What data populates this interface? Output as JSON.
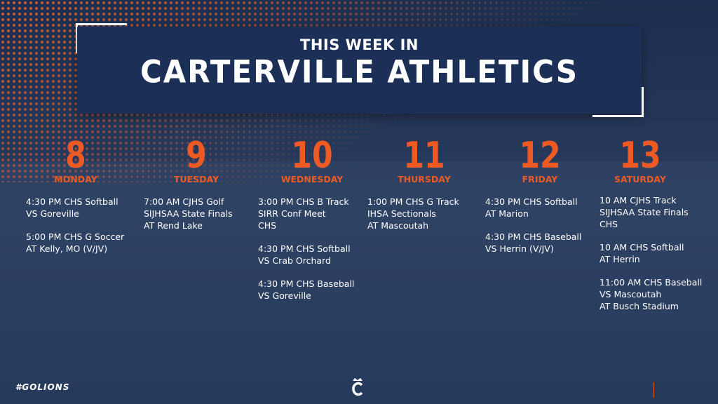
{
  "header": {
    "kicker": "THIS WEEK IN",
    "title": "CARTERVILLE ATHLETICS"
  },
  "days": [
    {
      "number": "8",
      "name": "MONDAY",
      "events": [
        [
          "4:30 PM CHS Softball",
          "VS Goreville"
        ],
        [
          "5:00 PM CHS G Soccer",
          "AT Kelly, MO (V/JV)"
        ]
      ]
    },
    {
      "number": "9",
      "name": "TUESDAY",
      "events": [
        [
          "7:00 AM CJHS Golf",
          "SIJHSAA State Finals",
          "AT Rend Lake"
        ]
      ]
    },
    {
      "number": "10",
      "name": "WEDNESDAY",
      "events": [
        [
          "3:00 PM CHS B Track",
          "SIRR Conf Meet",
          "CHS"
        ],
        [
          "4:30 PM CHS Softball",
          "VS Crab Orchard"
        ],
        [
          "4:30 PM CHS Baseball",
          "VS Goreville"
        ]
      ]
    },
    {
      "number": "11",
      "name": "THURSDAY",
      "events": [
        [
          "1:00 PM CHS G Track",
          "IHSA Sectionals",
          "AT Mascoutah"
        ]
      ]
    },
    {
      "number": "12",
      "name": "FRIDAY",
      "events": [
        [
          "4:30 PM CHS Softball",
          "AT Marion"
        ],
        [
          "4:30 PM CHS Baseball",
          "VS Herrin (V/JV)"
        ]
      ]
    },
    {
      "number": "13",
      "name": "SATURDAY",
      "events": [
        [
          "10 AM CJHS Track",
          "SIJHSAA State Finals",
          "CHS"
        ],
        [
          "10 AM CHS Softball",
          "AT Herrin"
        ],
        [
          "11:00 AM CHS Baseball",
          "VS Mascoutah",
          "AT Busch Stadium"
        ]
      ]
    }
  ],
  "footer": {
    "hashtag": "#GOLIONS"
  }
}
